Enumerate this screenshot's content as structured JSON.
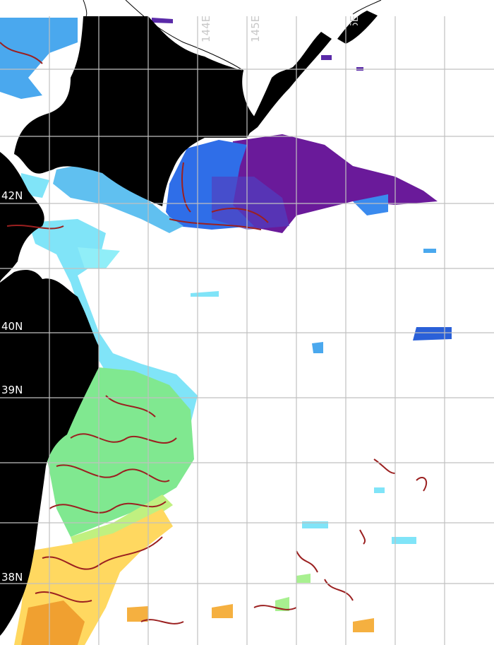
{
  "map": {
    "lat_labels": [
      "42N",
      "40N",
      "39N",
      "38N"
    ],
    "lon_labels": [
      "144E",
      "145E",
      "146E"
    ],
    "colors": {
      "land": "#000000",
      "no_data": "#ffffff",
      "grid": "#c0c0c0",
      "contour": "#9b2020",
      "cold_purple": "#6a1a9a",
      "blue": "#2a7ae8",
      "light_blue": "#4fb8f0",
      "cyan": "#7fe8f8",
      "green": "#7fe890",
      "yellow": "#ffd860",
      "orange": "#f0a030"
    }
  }
}
